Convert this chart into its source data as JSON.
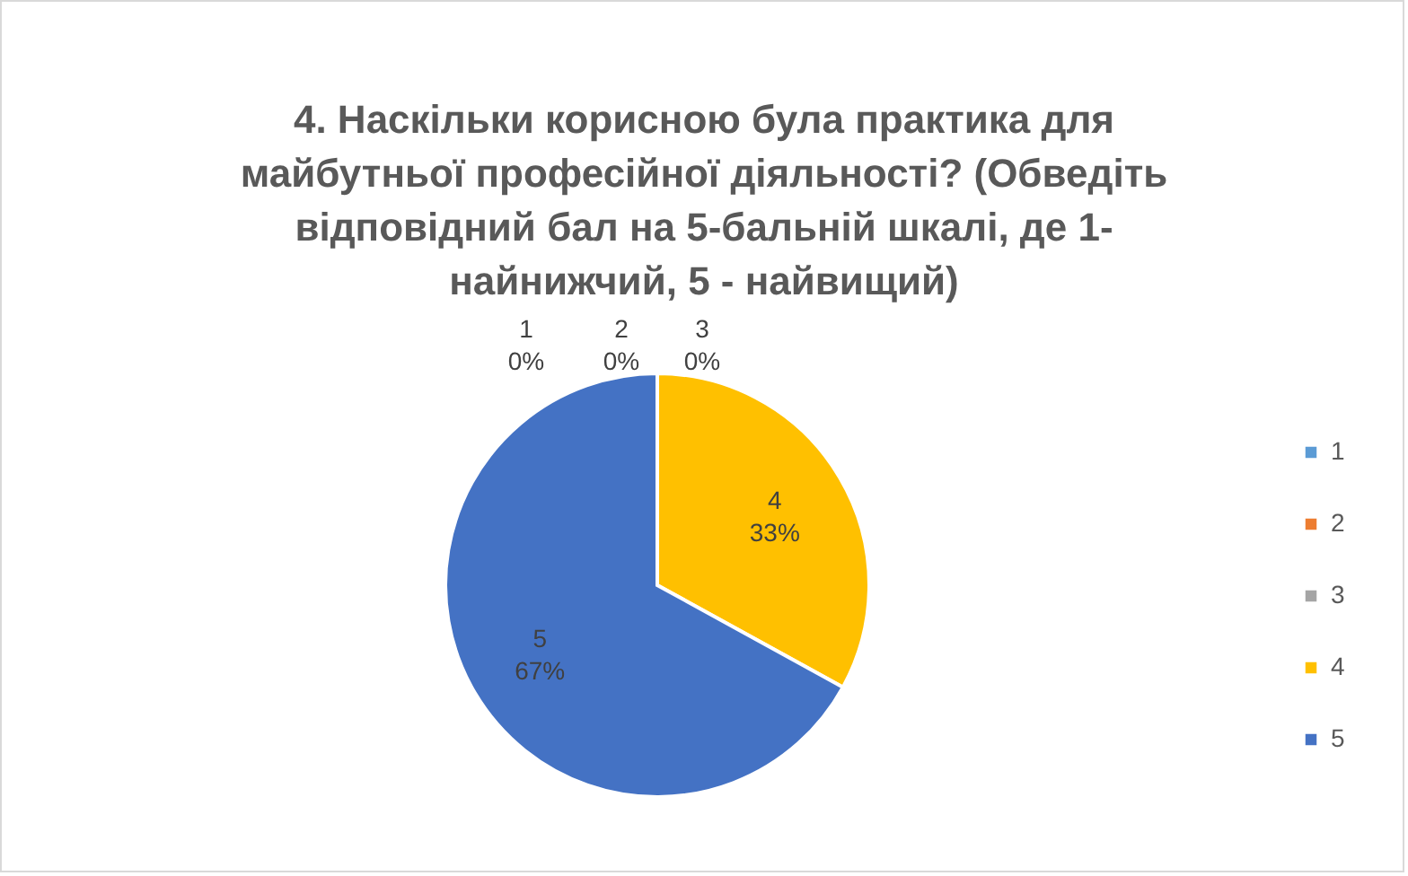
{
  "chart_data": {
    "type": "pie",
    "title": "4. Наскільки корисною була практика для майбутньої професійної діяльності? (Обведіть відповідний бал на 5-бальній шкалі, де 1- найнижчий, 5 - найвищий)",
    "categories": [
      "1",
      "2",
      "3",
      "4",
      "5"
    ],
    "values": [
      0,
      0,
      0,
      33,
      67
    ],
    "value_labels": [
      "0%",
      "0%",
      "0%",
      "33%",
      "67%"
    ],
    "colors": [
      "#5b9bd5",
      "#ed7d31",
      "#a5a5a5",
      "#ffc000",
      "#4472c4"
    ],
    "legend": "right"
  }
}
